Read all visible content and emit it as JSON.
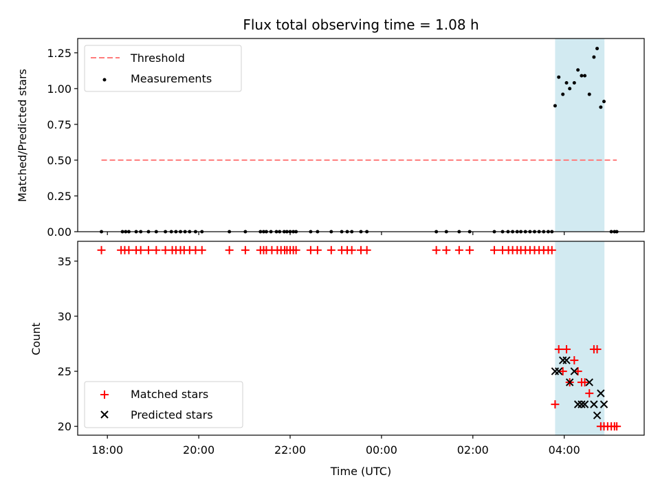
{
  "chart_data": [
    {
      "type": "scatter",
      "title": "Flux total observing time = 1.08 h",
      "xlabel": "",
      "ylabel": "Matched/Predicted stars",
      "ylim": [
        0,
        1.35
      ],
      "yticks": [
        "0.00",
        "0.25",
        "0.50",
        "0.75",
        "1.00",
        "1.25"
      ],
      "ytick_values": [
        0,
        0.25,
        0.5,
        0.75,
        1.0,
        1.25
      ],
      "xlim": [
        17.35,
        29.75
      ],
      "legend": {
        "placement": "top-left",
        "entries": [
          "Threshold",
          "Measurements"
        ]
      },
      "highlight_span": {
        "x_start": 27.8,
        "x_end": 28.88,
        "color": "#add8e6"
      },
      "threshold": {
        "name": "Threshold",
        "y": 0.5,
        "x_start": 17.87,
        "x_end": 29.15,
        "color": "#ff7a7a"
      },
      "series": [
        {
          "name": "Measurements",
          "color": "#000000",
          "x": [
            17.87,
            18.33,
            18.4,
            18.47,
            18.63,
            18.73,
            18.9,
            19.07,
            19.27,
            19.4,
            19.5,
            19.6,
            19.7,
            19.8,
            19.93,
            20.07,
            20.67,
            21.02,
            21.35,
            21.42,
            21.48,
            21.58,
            21.7,
            21.77,
            21.87,
            21.93,
            22.0,
            22.07,
            22.13,
            22.45,
            22.6,
            22.9,
            23.13,
            23.25,
            23.35,
            23.55,
            23.68,
            25.2,
            25.42,
            25.7,
            25.93,
            26.47,
            26.65,
            26.77,
            26.87,
            26.97,
            27.05,
            27.15,
            27.25,
            27.35,
            27.45,
            27.55,
            27.65,
            27.73,
            27.8,
            27.88,
            27.97,
            28.05,
            28.12,
            28.22,
            28.3,
            28.38,
            28.45,
            28.55,
            28.65,
            28.72,
            28.8,
            28.87,
            29.03,
            29.1,
            29.15
          ],
          "y": [
            0,
            0,
            0,
            0,
            0,
            0,
            0,
            0,
            0,
            0,
            0,
            0,
            0,
            0,
            0,
            0,
            0,
            0,
            0,
            0,
            0,
            0,
            0,
            0,
            0,
            0,
            0,
            0,
            0,
            0,
            0,
            0,
            0,
            0,
            0,
            0,
            0,
            0,
            0,
            0,
            0,
            0,
            0,
            0,
            0,
            0,
            0,
            0,
            0,
            0,
            0,
            0,
            0,
            0,
            0.88,
            1.08,
            0.96,
            1.04,
            1.0,
            1.04,
            1.13,
            1.09,
            1.09,
            0.96,
            1.22,
            1.28,
            0.87,
            0.91,
            0,
            0,
            0
          ]
        }
      ]
    },
    {
      "type": "scatter",
      "title": "",
      "xlabel": "Time (UTC)",
      "ylabel": "Count",
      "ylim": [
        19.2,
        36.8
      ],
      "yticks": [
        "20",
        "25",
        "30",
        "35"
      ],
      "ytick_values": [
        20,
        25,
        30,
        35
      ],
      "xlim": [
        17.35,
        29.75
      ],
      "xticks": [
        "18:00",
        "20:00",
        "22:00",
        "00:00",
        "02:00",
        "04:00"
      ],
      "xtick_values": [
        18,
        20,
        22,
        24,
        26,
        28
      ],
      "legend": {
        "placement": "bottom-left",
        "entries": [
          "Matched stars",
          "Predicted stars"
        ]
      },
      "highlight_span": {
        "x_start": 27.8,
        "x_end": 28.88,
        "color": "#add8e6"
      },
      "series": [
        {
          "name": "Matched stars",
          "marker": "plus",
          "color": "#ff0000",
          "x": [
            17.87,
            18.3,
            18.38,
            18.47,
            18.63,
            18.73,
            18.9,
            19.07,
            19.27,
            19.42,
            19.5,
            19.6,
            19.68,
            19.8,
            19.93,
            20.07,
            20.67,
            21.02,
            21.35,
            21.42,
            21.48,
            21.6,
            21.72,
            21.8,
            21.88,
            21.93,
            22.0,
            22.07,
            22.13,
            22.45,
            22.6,
            22.9,
            23.13,
            23.25,
            23.35,
            23.55,
            23.68,
            25.2,
            25.42,
            25.7,
            25.93,
            26.47,
            26.65,
            26.78,
            26.87,
            26.97,
            27.05,
            27.15,
            27.25,
            27.35,
            27.45,
            27.55,
            27.65,
            27.73,
            27.8,
            27.88,
            27.97,
            28.05,
            28.12,
            28.22,
            28.3,
            28.38,
            28.45,
            28.55,
            28.65,
            28.72,
            28.8,
            28.87,
            28.95,
            29.03,
            29.1,
            29.15
          ],
          "y": [
            36,
            36,
            36,
            36,
            36,
            36,
            36,
            36,
            36,
            36,
            36,
            36,
            36,
            36,
            36,
            36,
            36,
            36,
            36,
            36,
            36,
            36,
            36,
            36,
            36,
            36,
            36,
            36,
            36,
            36,
            36,
            36,
            36,
            36,
            36,
            36,
            36,
            36,
            36,
            36,
            36,
            36,
            36,
            36,
            36,
            36,
            36,
            36,
            36,
            36,
            36,
            36,
            36,
            36,
            22,
            27,
            25,
            27,
            24,
            26,
            25,
            24,
            24,
            23,
            27,
            27,
            20,
            20,
            20,
            20,
            20,
            20
          ]
        },
        {
          "name": "Predicted stars",
          "marker": "x",
          "color": "#000000",
          "x": [
            27.8,
            27.88,
            27.97,
            28.05,
            28.12,
            28.22,
            28.3,
            28.38,
            28.45,
            28.55,
            28.65,
            28.72,
            28.8,
            28.87
          ],
          "y": [
            25,
            25,
            26,
            26,
            24,
            25,
            22,
            22,
            22,
            24,
            22,
            21,
            23,
            22
          ]
        }
      ]
    }
  ]
}
